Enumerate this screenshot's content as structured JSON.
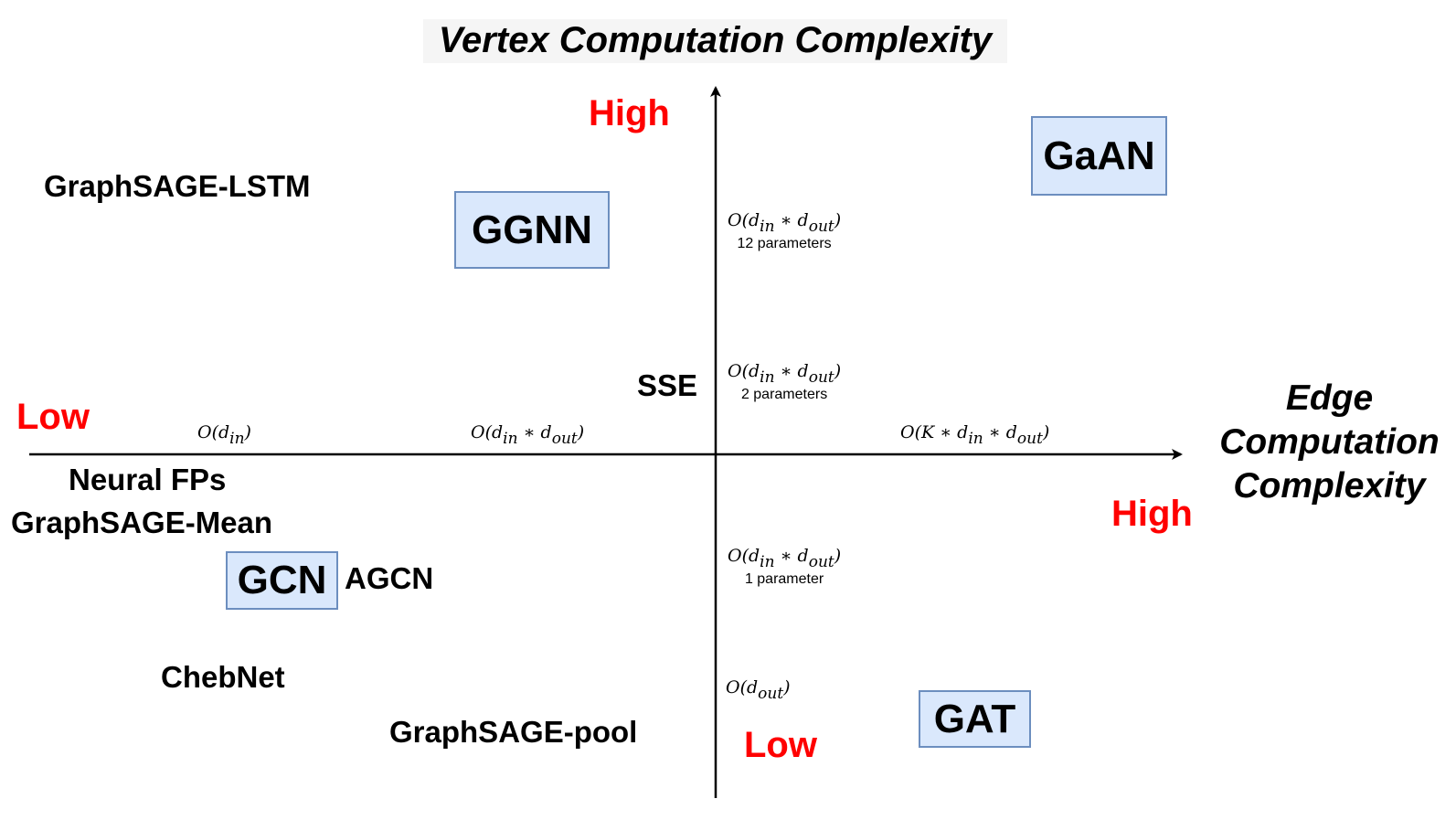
{
  "title": "Vertex Computation Complexity",
  "edge_axis_title": "Edge Computation Complexity",
  "labels": {
    "vertical_high": "High",
    "vertical_low": "Low",
    "horizontal_low": "Low",
    "horizontal_high": "High"
  },
  "models": {
    "graphsage_lstm": "GraphSAGE-LSTM",
    "ggnn": "GGNN",
    "gaan": "GaAN",
    "sse": "SSE",
    "neural_fps": "Neural FPs",
    "graphsage_mean": "GraphSAGE-Mean",
    "gcn": "GCN",
    "agcn": "AGCN",
    "chebnet": "ChebNet",
    "graphsage_pool": "GraphSAGE-pool",
    "gat": "GAT"
  },
  "edge_complexities": {
    "d_in": {
      "base": "O(d",
      "sub": "in",
      "tail": ")"
    },
    "d_in_d_out": {
      "base1": "O(d",
      "sub1": "in",
      "mid": " ∗ d",
      "sub2": "out",
      "tail": ")"
    },
    "k_d_in_d_out": {
      "base1": "O(K ∗ d",
      "sub1": "in",
      "mid": " ∗ d",
      "sub2": "out",
      "tail": ")"
    }
  },
  "vertex_complexities": {
    "twelve": {
      "base1": "O(d",
      "sub1": "in",
      "mid": " ∗ d",
      "sub2": "out",
      "tail": ")",
      "note": "12 parameters"
    },
    "two": {
      "base1": "O(d",
      "sub1": "in",
      "mid": " ∗ d",
      "sub2": "out",
      "tail": ")",
      "note": "2 parameters"
    },
    "one": {
      "base1": "O(d",
      "sub1": "in",
      "mid": " ∗ d",
      "sub2": "out",
      "tail": ")",
      "note": "1 parameter"
    },
    "d_out": {
      "base": "O(d",
      "sub": "out",
      "tail": ")"
    }
  }
}
